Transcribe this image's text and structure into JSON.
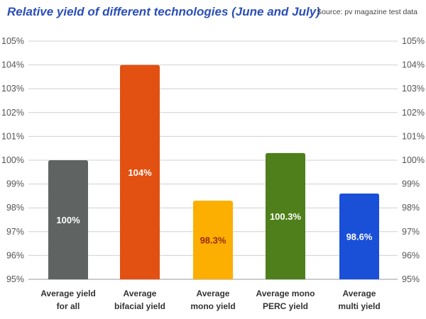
{
  "chart_data": {
    "type": "bar",
    "title": "Relative yield of different technologies (June and July)",
    "source": "Source: pv magazine test data",
    "categories": [
      [
        "Average yield",
        "for all"
      ],
      [
        "Average",
        "bifacial yield"
      ],
      [
        "Average",
        "mono yield"
      ],
      [
        "Average mono",
        "PERC yield"
      ],
      [
        "Average",
        "multi yield"
      ]
    ],
    "values": [
      100,
      104,
      98.3,
      100.3,
      98.6
    ],
    "data_labels": [
      "100%",
      "104%",
      "98.3%",
      "100.3%",
      "98.6%"
    ],
    "bar_colors": [
      "#5f6462",
      "#e25112",
      "#fcaf00",
      "#4e7f1a",
      "#1a4fd8"
    ],
    "label_colors": [
      "#ffffff",
      "#ffffff",
      "#9b2a0c",
      "#ffffff",
      "#ffffff"
    ],
    "ylim": [
      95,
      105
    ],
    "yticks": [
      95,
      96,
      97,
      98,
      99,
      100,
      101,
      102,
      103,
      104,
      105
    ],
    "ytick_labels": [
      "95%",
      "96%",
      "97%",
      "98%",
      "99%",
      "100%",
      "101%",
      "102%",
      "103%",
      "104%",
      "105%"
    ],
    "grid": true,
    "y_axis_labels_both_sides": true,
    "xlabel": "",
    "ylabel": ""
  }
}
